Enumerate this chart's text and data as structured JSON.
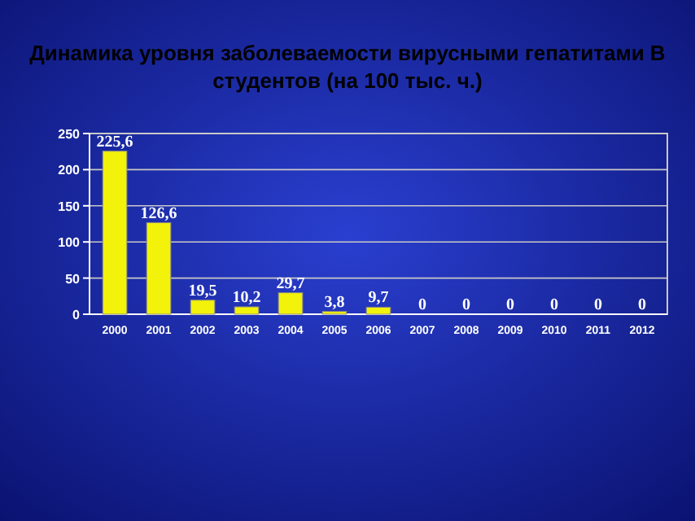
{
  "chart_data": {
    "type": "bar",
    "title": "Динамика уровня заболеваемости вирусными гепатитами В студентов (на 100 тыс. ч.)",
    "categories": [
      "2000",
      "2001",
      "2002",
      "2003",
      "2004",
      "2005",
      "2006",
      "2007",
      "2008",
      "2009",
      "2010",
      "2011",
      "2012"
    ],
    "values": [
      225.6,
      126.6,
      19.5,
      10.2,
      29.7,
      3.8,
      9.7,
      0,
      0,
      0,
      0,
      0,
      0
    ],
    "value_labels": [
      "225,6",
      "126,6",
      "19,5",
      "10,2",
      "29,7",
      "3,8",
      "9,7",
      "0",
      "0",
      "0",
      "0",
      "0",
      "0"
    ],
    "color": "#f2f20a",
    "ylim": [
      0,
      250
    ],
    "yticks": [
      0,
      50,
      100,
      150,
      200,
      250
    ],
    "grid": "y"
  }
}
